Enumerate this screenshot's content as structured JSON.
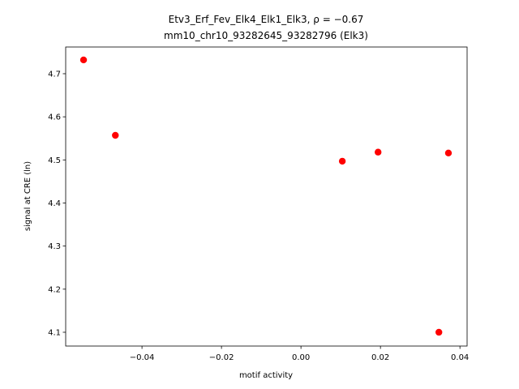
{
  "chart_data": {
    "type": "scatter",
    "title": "Etv3_Erf_Fev_Elk4_Elk1_Elk3, ρ = −0.67",
    "subtitle": "mm10_chr10_93282645_93282796 (Elk3)",
    "x_label": "motif activity",
    "y_label": "signal at CRE (ln)",
    "x": [
      -0.0547,
      -0.0467,
      0.0104,
      0.0194,
      0.0371,
      0.0347
    ],
    "values": [
      4.732,
      4.557,
      4.497,
      4.518,
      4.516,
      4.1
    ],
    "color": "#ff0000",
    "xlim": [
      -0.0592,
      0.0418
    ],
    "ylim": [
      4.068,
      4.762
    ],
    "xticks": [
      {
        "value": -0.04,
        "label": "−0.04"
      },
      {
        "value": -0.02,
        "label": "−0.02"
      },
      {
        "value": 0,
        "label": "0.00"
      },
      0.02,
      0.04
    ],
    "yticks": [
      4.1,
      4.2,
      4.3,
      4.4,
      4.5,
      4.6,
      4.7
    ]
  }
}
